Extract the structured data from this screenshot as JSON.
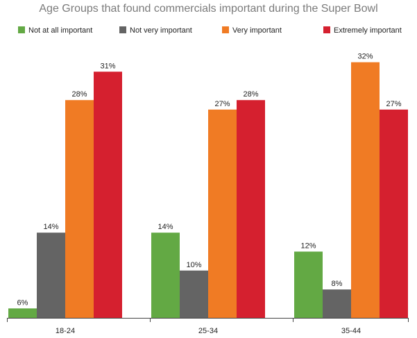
{
  "chart_data": {
    "type": "bar",
    "title": "Age Groups that found commercials important during the Super Bowl",
    "categories": [
      "18-24",
      "25-34",
      "35-44"
    ],
    "series": [
      {
        "name": "Not at all important",
        "color": "#63a944",
        "values": [
          6,
          14,
          12
        ],
        "labels": [
          "6%",
          "14%",
          "12%"
        ]
      },
      {
        "name": "Not very important",
        "color": "#646464",
        "values": [
          14,
          10,
          8
        ],
        "labels": [
          "14%",
          "10%",
          "8%"
        ]
      },
      {
        "name": "Very important",
        "color": "#f07b24",
        "values": [
          28,
          27,
          32
        ],
        "labels": [
          "28%",
          "27%",
          "32%"
        ]
      },
      {
        "name": "Extremely important",
        "color": "#d5202f",
        "values": [
          31,
          28,
          27
        ],
        "labels": [
          "31%",
          "28%",
          "27%"
        ]
      }
    ],
    "xlabel": "",
    "ylabel": "",
    "ylim": [
      5,
      33
    ],
    "grid": false,
    "legend_position": "top"
  }
}
